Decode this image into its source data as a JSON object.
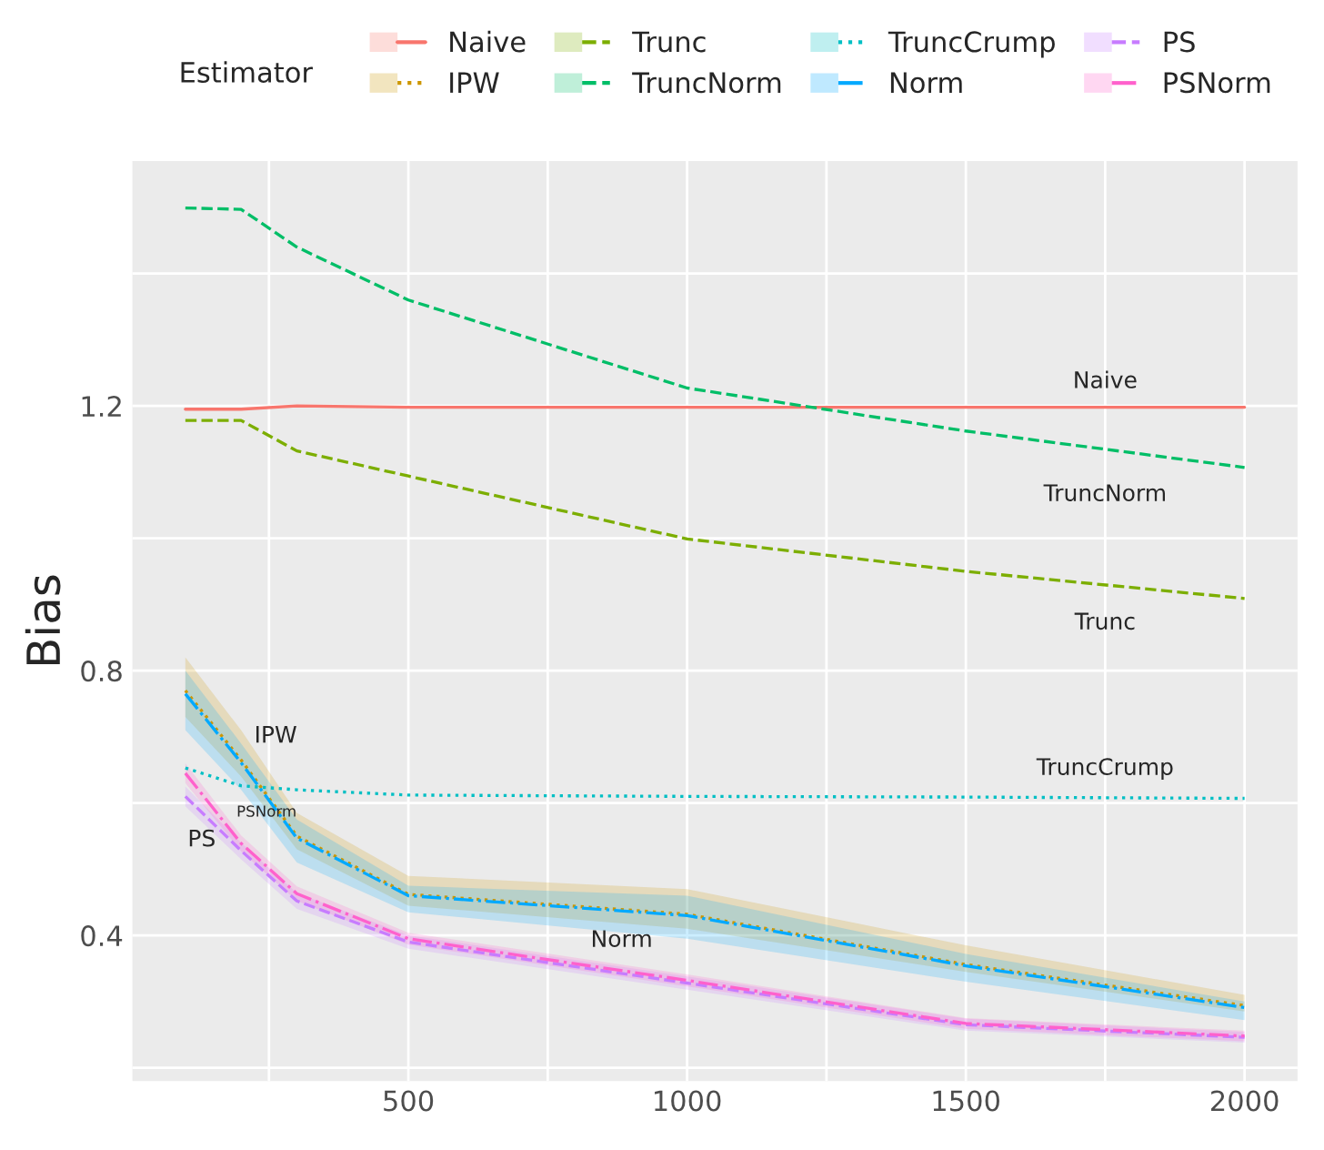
{
  "chart_data": {
    "type": "line",
    "ylabel": "Bias",
    "legend_title": "Estimator",
    "legend": "top",
    "grid": true,
    "x": [
      100,
      200,
      300,
      500,
      1000,
      1500,
      2000
    ],
    "xlim": [
      5,
      2095
    ],
    "ylim": [
      0.18,
      1.57
    ],
    "xticks": [
      {
        "value": 250,
        "label": null
      },
      500,
      {
        "value": 750,
        "label": null
      },
      1000,
      {
        "value": 1250,
        "label": null
      },
      1500,
      {
        "value": 1750,
        "label": null
      },
      2000
    ],
    "yticks": [
      {
        "value": 0.2,
        "label": null
      },
      0.4,
      {
        "value": 0.6,
        "label": null
      },
      0.8,
      {
        "value": 1.0,
        "label": null
      },
      1.2,
      {
        "value": 1.4,
        "label": null
      }
    ],
    "series": [
      {
        "name": "Naive",
        "color": "#F8766D",
        "line_style": "solid",
        "values": [
          1.195,
          1.195,
          1.2,
          1.198,
          1.198,
          1.198,
          1.198
        ]
      },
      {
        "name": "IPW",
        "color": "#CD9600",
        "line_style": "dotted",
        "values": [
          0.77,
          0.665,
          0.55,
          0.462,
          0.432,
          0.356,
          0.294
        ],
        "lower": [
          0.73,
          0.64,
          0.53,
          0.445,
          0.41,
          0.345,
          0.285
        ],
        "upper": [
          0.82,
          0.71,
          0.585,
          0.49,
          0.47,
          0.385,
          0.31
        ]
      },
      {
        "name": "Trunc",
        "color": "#7CAE00",
        "line_style": "dashed",
        "values": [
          1.178,
          1.178,
          1.132,
          1.094,
          0.999,
          0.95,
          0.909
        ]
      },
      {
        "name": "TruncNorm",
        "color": "#00BE67",
        "line_style": "dashed",
        "values": [
          1.499,
          1.497,
          1.44,
          1.36,
          1.227,
          1.162,
          1.107
        ]
      },
      {
        "name": "TruncCrump",
        "color": "#00BFC4",
        "line_style": "dotted",
        "values": [
          0.653,
          0.626,
          0.62,
          0.612,
          0.61,
          0.609,
          0.607
        ]
      },
      {
        "name": "Norm",
        "color": "#00A9FF",
        "line_style": "dashdot",
        "values": [
          0.765,
          0.661,
          0.547,
          0.46,
          0.43,
          0.354,
          0.291
        ],
        "lower": [
          0.71,
          0.62,
          0.51,
          0.435,
          0.395,
          0.33,
          0.272
        ],
        "upper": [
          0.8,
          0.69,
          0.575,
          0.475,
          0.46,
          0.372,
          0.3
        ]
      },
      {
        "name": "PS",
        "color": "#C77CFF",
        "line_style": "dashed",
        "values": [
          0.61,
          0.528,
          0.452,
          0.39,
          0.328,
          0.265,
          0.246
        ],
        "lower": [
          0.595,
          0.515,
          0.44,
          0.38,
          0.318,
          0.256,
          0.238
        ],
        "upper": [
          0.625,
          0.54,
          0.464,
          0.4,
          0.338,
          0.274,
          0.254
        ]
      },
      {
        "name": "PSNorm",
        "color": "#FF61CC",
        "line_style": "dashdot",
        "values": [
          0.645,
          0.539,
          0.463,
          0.395,
          0.332,
          0.267,
          0.248
        ],
        "lower": [
          0.63,
          0.527,
          0.452,
          0.386,
          0.323,
          0.259,
          0.24
        ],
        "upper": [
          0.66,
          0.551,
          0.474,
          0.404,
          0.341,
          0.275,
          0.256
        ]
      }
    ],
    "annotations": [
      {
        "text": "Naive",
        "x": 1750,
        "y": 1.198
      },
      {
        "text": "TruncNorm",
        "x": 1750,
        "y": 1.1345
      },
      {
        "text": "Trunc",
        "x": 1750,
        "y": 0.9295
      },
      {
        "text": "TruncCrump",
        "x": 1750,
        "y": 0.608
      },
      {
        "text": "IPW",
        "x": 200,
        "y": 0.665
      },
      {
        "text": "PSNorm",
        "x": 200,
        "y": 0.539
      },
      {
        "text": "PS",
        "x": 100,
        "y": 0.61
      },
      {
        "text": "Norm",
        "x": 850,
        "y": 0.439
      }
    ]
  }
}
